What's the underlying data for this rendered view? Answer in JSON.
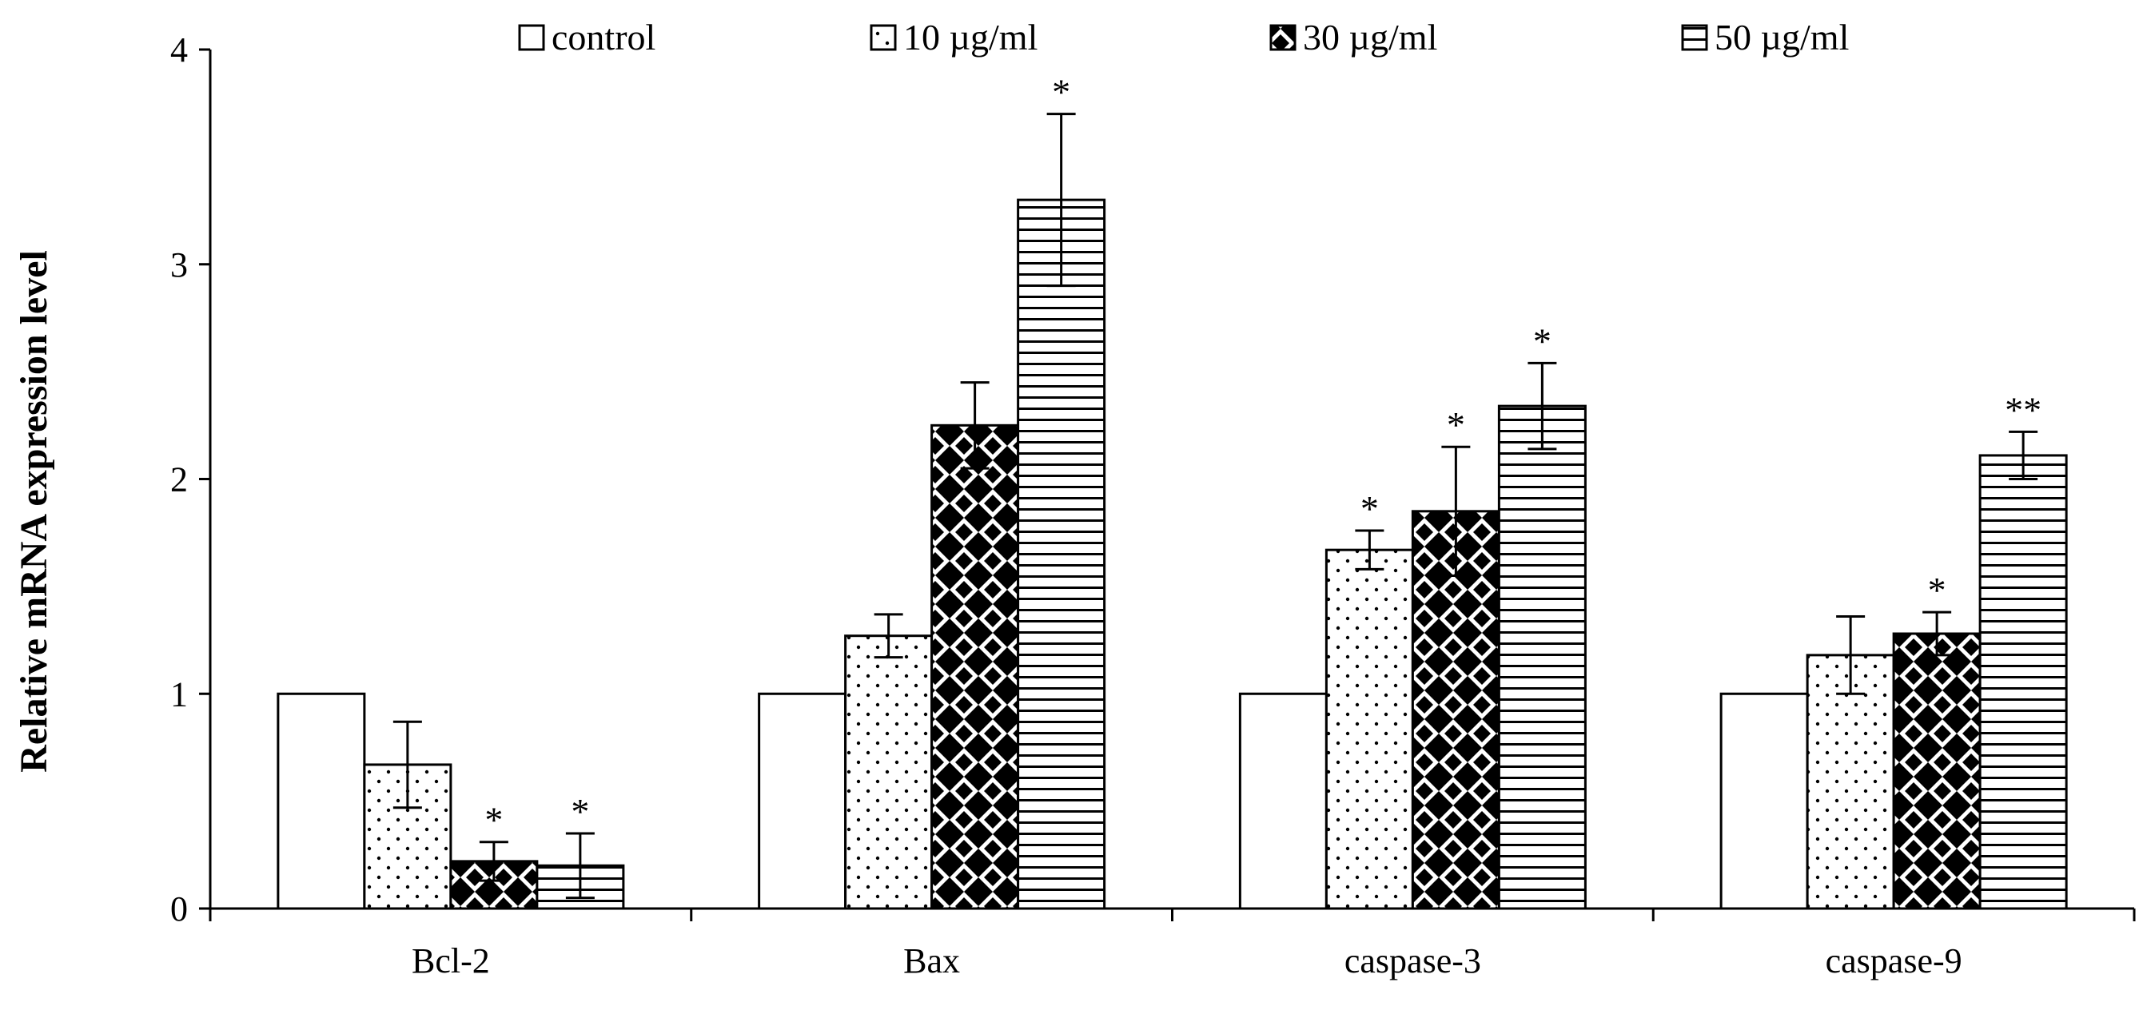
{
  "chart_data": {
    "type": "bar",
    "title": "",
    "xlabel": "",
    "ylabel": "Relative mRNA expression level",
    "ylim": [
      0,
      4
    ],
    "yticks": [
      "0",
      "1",
      "2",
      "3",
      "4"
    ],
    "grid": false,
    "legend_position": "top",
    "categories": [
      "Bcl-2",
      "Bax",
      "caspase-3",
      "caspase-9"
    ],
    "series": [
      {
        "name": "control",
        "pattern": "empty",
        "values": [
          1.0,
          1.0,
          1.0,
          1.0
        ],
        "errors": [
          0,
          0,
          0,
          0
        ],
        "significance": [
          "",
          "",
          "",
          ""
        ]
      },
      {
        "name": "10 µg/ml",
        "pattern": "dots",
        "values": [
          0.67,
          1.27,
          1.67,
          1.18
        ],
        "errors": [
          0.2,
          0.1,
          0.09,
          0.18
        ],
        "significance": [
          "",
          "",
          "*",
          ""
        ]
      },
      {
        "name": "30 µg/ml",
        "pattern": "diamonds",
        "values": [
          0.22,
          2.25,
          1.85,
          1.28
        ],
        "errors": [
          0.09,
          0.2,
          0.3,
          0.1
        ],
        "significance": [
          "*",
          "",
          "*",
          "*"
        ]
      },
      {
        "name": "50 µg/ml",
        "pattern": "horizontal-lines",
        "values": [
          0.2,
          3.3,
          2.34,
          2.11
        ],
        "errors": [
          0.15,
          0.4,
          0.2,
          0.11
        ],
        "significance": [
          "*",
          "*",
          "*",
          "**"
        ]
      }
    ],
    "colors": {
      "stroke": "#000000",
      "fill": "#ffffff"
    }
  }
}
